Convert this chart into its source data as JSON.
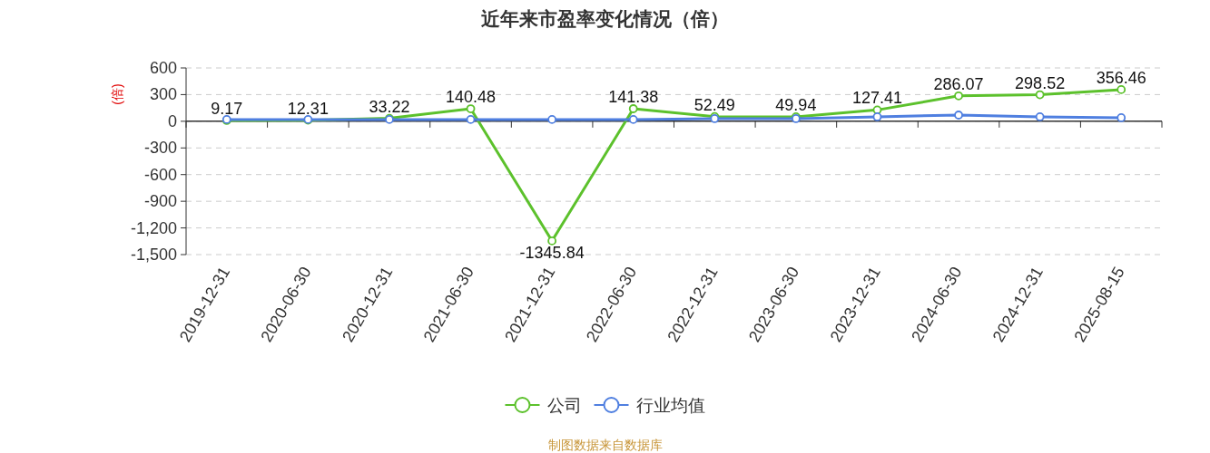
{
  "chart_data": {
    "type": "line",
    "title": "近年来市盈率变化情况（倍）",
    "ylabel": "(倍)",
    "categories": [
      "2019-12-31",
      "2020-06-30",
      "2020-12-31",
      "2021-06-30",
      "2021-12-31",
      "2022-06-30",
      "2022-12-31",
      "2023-06-30",
      "2023-12-31",
      "2024-06-30",
      "2024-12-31",
      "2025-08-15"
    ],
    "series": [
      {
        "name": "公司",
        "color": "#5cc12c",
        "values": [
          9.17,
          12.31,
          33.22,
          140.48,
          -1345.84,
          141.38,
          52.49,
          49.94,
          127.41,
          286.07,
          298.52,
          356.46
        ],
        "value_labels": [
          "9.17",
          "12.31",
          "33.22",
          "140.48",
          "-1345.84",
          "141.38",
          "52.49",
          "49.94",
          "127.41",
          "286.07",
          "298.52",
          "356.46"
        ]
      },
      {
        "name": "行业均值",
        "color": "#4f7fe0",
        "values": [
          20,
          20,
          20,
          20,
          20,
          20,
          30,
          30,
          50,
          70,
          50,
          40
        ]
      }
    ],
    "ylim": [
      -1500,
      600
    ],
    "yticks": [
      {
        "value": -1500,
        "label": "-1,500"
      },
      {
        "value": -1200,
        "label": "-1,200"
      },
      -900,
      -600,
      -300,
      0,
      300,
      600
    ],
    "grid": "y",
    "legend": "bottom",
    "marker": "circle",
    "line_style": "solid",
    "annotations": [
      "制图数据来自数据库"
    ]
  }
}
